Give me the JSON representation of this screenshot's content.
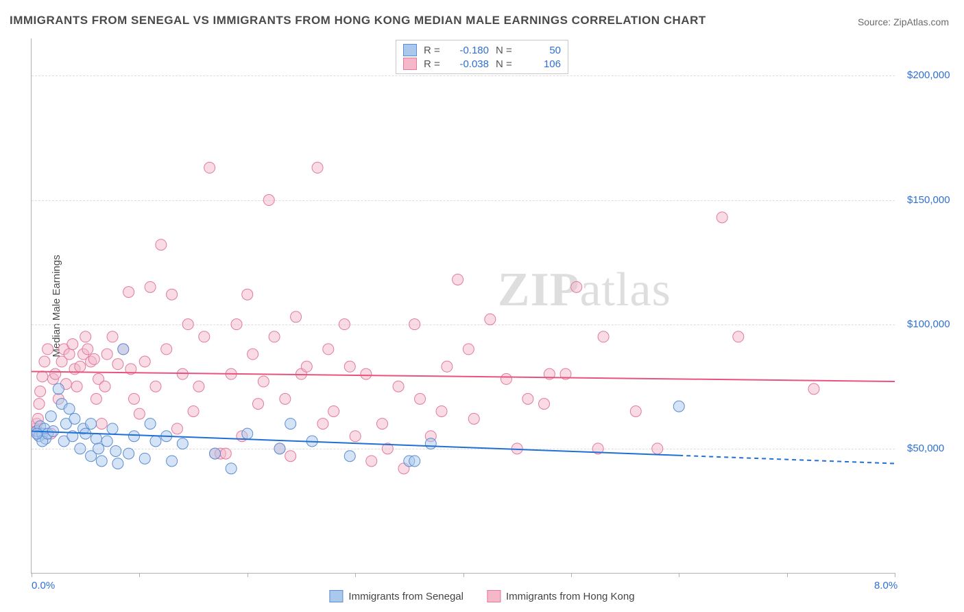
{
  "title": "IMMIGRANTS FROM SENEGAL VS IMMIGRANTS FROM HONG KONG MEDIAN MALE EARNINGS CORRELATION CHART",
  "source_label": "Source: ZipAtlas.com",
  "ylabel": "Median Male Earnings",
  "watermark": {
    "zip": "ZIP",
    "atlas": "atlas"
  },
  "chart": {
    "type": "scatter",
    "background_color": "#ffffff",
    "grid_color": "#dcdcdc",
    "axis_color": "#b0b0b0",
    "tick_label_color": "#2f6fd0",
    "tick_label_fontsize": 15,
    "xlim": [
      0.0,
      8.0
    ],
    "ylim": [
      0,
      215000
    ],
    "xticks": [
      0.0,
      1.0,
      2.0,
      3.0,
      4.0,
      5.0,
      6.0,
      7.0,
      8.0
    ],
    "xtick_labels": {
      "0.0": "0.0%",
      "8.0": "8.0%"
    },
    "yticks_grid": [
      50000,
      100000,
      150000,
      200000
    ],
    "ytick_labels": [
      "$50,000",
      "$100,000",
      "$150,000",
      "$200,000"
    ],
    "marker_radius": 8,
    "marker_opacity": 0.5,
    "trendline_width": 2,
    "series": [
      {
        "name": "Immigrants from Senegal",
        "key": "senegal",
        "fill_color": "#a9c8ec",
        "stroke_color": "#5a8cd0",
        "line_color": "#1f6fd6",
        "R": "-0.180",
        "N": "50",
        "trendline": {
          "y_at_xmin": 57000,
          "y_at_xmax": 44000,
          "solid_until_x": 6.0
        },
        "points": [
          [
            0.05,
            57000
          ],
          [
            0.08,
            59000
          ],
          [
            0.07,
            55000
          ],
          [
            0.1,
            56000
          ],
          [
            0.12,
            58000
          ],
          [
            0.13,
            54000
          ],
          [
            0.1,
            53000
          ],
          [
            0.15,
            56000
          ],
          [
            0.18,
            63000
          ],
          [
            0.2,
            57000
          ],
          [
            0.25,
            74000
          ],
          [
            0.28,
            68000
          ],
          [
            0.3,
            53000
          ],
          [
            0.35,
            66000
          ],
          [
            0.32,
            60000
          ],
          [
            0.38,
            55000
          ],
          [
            0.4,
            62000
          ],
          [
            0.45,
            50000
          ],
          [
            0.48,
            58000
          ],
          [
            0.5,
            56000
          ],
          [
            0.55,
            47000
          ],
          [
            0.55,
            60000
          ],
          [
            0.6,
            54000
          ],
          [
            0.62,
            50000
          ],
          [
            0.65,
            45000
          ],
          [
            0.7,
            53000
          ],
          [
            0.75,
            58000
          ],
          [
            0.78,
            49000
          ],
          [
            0.8,
            44000
          ],
          [
            0.85,
            90000
          ],
          [
            0.9,
            48000
          ],
          [
            0.95,
            55000
          ],
          [
            1.05,
            46000
          ],
          [
            1.15,
            53000
          ],
          [
            1.1,
            60000
          ],
          [
            1.25,
            55000
          ],
          [
            1.3,
            45000
          ],
          [
            1.4,
            52000
          ],
          [
            1.7,
            48000
          ],
          [
            1.85,
            42000
          ],
          [
            2.0,
            56000
          ],
          [
            2.3,
            50000
          ],
          [
            2.4,
            60000
          ],
          [
            2.6,
            53000
          ],
          [
            2.95,
            47000
          ],
          [
            3.5,
            45000
          ],
          [
            3.55,
            45000
          ],
          [
            3.7,
            52000
          ],
          [
            6.0,
            67000
          ],
          [
            0.05,
            56000
          ]
        ]
      },
      {
        "name": "Immigrants from Hong Kong",
        "key": "hongkong",
        "fill_color": "#f4b8c9",
        "stroke_color": "#e278a0",
        "line_color": "#e8537e",
        "R": "-0.038",
        "N": "106",
        "trendline": {
          "y_at_xmin": 81000,
          "y_at_xmax": 77000,
          "solid_until_x": 8.0
        },
        "points": [
          [
            0.03,
            58000
          ],
          [
            0.04,
            57000
          ],
          [
            0.05,
            60000
          ],
          [
            0.06,
            62000
          ],
          [
            0.07,
            68000
          ],
          [
            0.08,
            73000
          ],
          [
            0.1,
            79000
          ],
          [
            0.12,
            85000
          ],
          [
            0.15,
            90000
          ],
          [
            0.18,
            56000
          ],
          [
            0.2,
            78000
          ],
          [
            0.22,
            80000
          ],
          [
            0.25,
            70000
          ],
          [
            0.28,
            85000
          ],
          [
            0.3,
            90000
          ],
          [
            0.32,
            76000
          ],
          [
            0.35,
            88000
          ],
          [
            0.38,
            92000
          ],
          [
            0.4,
            82000
          ],
          [
            0.42,
            75000
          ],
          [
            0.45,
            83000
          ],
          [
            0.48,
            88000
          ],
          [
            0.5,
            95000
          ],
          [
            0.52,
            90000
          ],
          [
            0.55,
            85000
          ],
          [
            0.58,
            86000
          ],
          [
            0.6,
            70000
          ],
          [
            0.62,
            78000
          ],
          [
            0.65,
            60000
          ],
          [
            0.68,
            75000
          ],
          [
            0.7,
            88000
          ],
          [
            0.75,
            95000
          ],
          [
            0.8,
            84000
          ],
          [
            0.85,
            90000
          ],
          [
            0.9,
            113000
          ],
          [
            0.92,
            82000
          ],
          [
            0.95,
            70000
          ],
          [
            1.0,
            64000
          ],
          [
            1.05,
            85000
          ],
          [
            1.1,
            115000
          ],
          [
            1.15,
            75000
          ],
          [
            1.2,
            132000
          ],
          [
            1.25,
            90000
          ],
          [
            1.3,
            112000
          ],
          [
            1.35,
            58000
          ],
          [
            1.4,
            80000
          ],
          [
            1.45,
            100000
          ],
          [
            1.5,
            65000
          ],
          [
            1.55,
            75000
          ],
          [
            1.6,
            95000
          ],
          [
            1.65,
            163000
          ],
          [
            1.7,
            48000
          ],
          [
            1.75,
            48000
          ],
          [
            1.8,
            48000
          ],
          [
            1.85,
            80000
          ],
          [
            1.9,
            100000
          ],
          [
            1.95,
            55000
          ],
          [
            2.0,
            112000
          ],
          [
            2.05,
            88000
          ],
          [
            2.1,
            68000
          ],
          [
            2.15,
            77000
          ],
          [
            2.2,
            150000
          ],
          [
            2.25,
            95000
          ],
          [
            2.3,
            50000
          ],
          [
            2.35,
            70000
          ],
          [
            2.4,
            47000
          ],
          [
            2.45,
            103000
          ],
          [
            2.5,
            80000
          ],
          [
            2.55,
            83000
          ],
          [
            2.65,
            163000
          ],
          [
            2.7,
            60000
          ],
          [
            2.75,
            90000
          ],
          [
            2.8,
            65000
          ],
          [
            2.9,
            100000
          ],
          [
            2.95,
            83000
          ],
          [
            3.0,
            55000
          ],
          [
            3.1,
            80000
          ],
          [
            3.15,
            45000
          ],
          [
            3.25,
            60000
          ],
          [
            3.3,
            50000
          ],
          [
            3.4,
            75000
          ],
          [
            3.45,
            42000
          ],
          [
            3.55,
            100000
          ],
          [
            3.6,
            70000
          ],
          [
            3.7,
            55000
          ],
          [
            3.8,
            65000
          ],
          [
            3.85,
            83000
          ],
          [
            3.95,
            118000
          ],
          [
            4.05,
            90000
          ],
          [
            4.1,
            62000
          ],
          [
            4.25,
            102000
          ],
          [
            4.4,
            78000
          ],
          [
            4.5,
            50000
          ],
          [
            4.6,
            70000
          ],
          [
            4.75,
            68000
          ],
          [
            4.8,
            80000
          ],
          [
            4.95,
            80000
          ],
          [
            5.05,
            115000
          ],
          [
            5.25,
            50000
          ],
          [
            5.3,
            95000
          ],
          [
            5.6,
            65000
          ],
          [
            5.8,
            50000
          ],
          [
            6.4,
            143000
          ],
          [
            6.55,
            95000
          ],
          [
            7.25,
            74000
          ],
          [
            0.05,
            56000
          ]
        ]
      }
    ]
  },
  "legend_bottom": [
    {
      "label": "Immigrants from Senegal",
      "fill": "#a9c8ec",
      "stroke": "#5a8cd0"
    },
    {
      "label": "Immigrants from Hong Kong",
      "fill": "#f4b8c9",
      "stroke": "#e278a0"
    }
  ]
}
